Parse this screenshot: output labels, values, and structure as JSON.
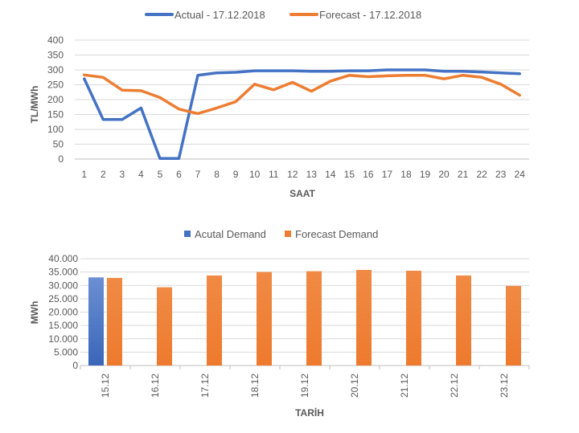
{
  "chart_data": [
    {
      "type": "line",
      "title": "",
      "xlabel": "SAAT",
      "ylabel": "TL/MWh",
      "ylim": [
        0,
        400
      ],
      "yticks": [
        0,
        50,
        100,
        150,
        200,
        250,
        300,
        350,
        400
      ],
      "grid": true,
      "legend": "top-center",
      "x": [
        "1",
        "2",
        "3",
        "4",
        "5",
        "6",
        "7",
        "8",
        "9",
        "10",
        "11",
        "12",
        "13",
        "14",
        "15",
        "16",
        "17",
        "18",
        "19",
        "20",
        "21",
        "22",
        "23",
        "24"
      ],
      "series": [
        {
          "name": "Actual - 17.12.2018",
          "color": "#4472C4",
          "values": [
            270,
            133,
            133,
            172,
            2,
            2,
            282,
            290,
            292,
            297,
            297,
            297,
            295,
            295,
            297,
            297,
            300,
            300,
            300,
            295,
            295,
            293,
            290,
            287
          ]
        },
        {
          "name": "Forecast - 17.12.2018",
          "color": "#ED7D31",
          "values": [
            283,
            275,
            232,
            230,
            207,
            168,
            153,
            172,
            193,
            252,
            233,
            258,
            228,
            262,
            282,
            277,
            280,
            282,
            282,
            270,
            282,
            275,
            252,
            215
          ]
        }
      ]
    },
    {
      "type": "bar",
      "title": "",
      "xlabel": "TARİH",
      "ylabel": "MWh",
      "ylim": [
        0,
        40000
      ],
      "yticks": [
        "0",
        "5.000",
        "10.000",
        "15.000",
        "20.000",
        "25.000",
        "30.000",
        "35.000",
        "40.000"
      ],
      "grid": true,
      "legend": "top-center",
      "categories": [
        "15.12",
        "16.12",
        "17.12",
        "18.12",
        "19.12",
        "20.12",
        "21.12",
        "22.12",
        "23.12"
      ],
      "series": [
        {
          "name": "Acutal Demand",
          "color": "#4472C4",
          "values": [
            33000,
            null,
            null,
            null,
            null,
            null,
            null,
            null,
            null
          ]
        },
        {
          "name": "Forecast Demand",
          "color": "#ED7D31",
          "values": [
            32800,
            29300,
            33700,
            35000,
            35300,
            35800,
            35500,
            33700,
            29800
          ]
        }
      ]
    }
  ]
}
